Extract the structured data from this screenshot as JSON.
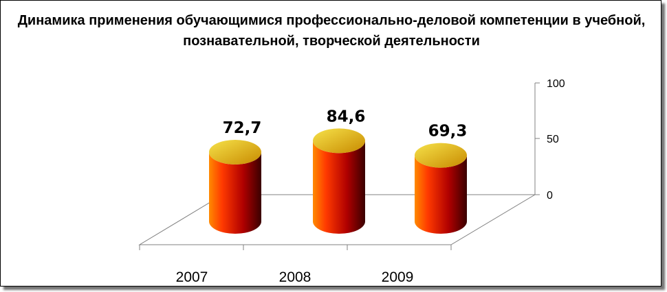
{
  "chart_data": {
    "type": "bar",
    "title": "Динамика применения обучающимися профессионально-деловой компетенции в учебной, познавательной, творческой деятельности",
    "categories": [
      "2007",
      "2008",
      "2009"
    ],
    "values": [
      72.7,
      84.6,
      69.3
    ],
    "data_labels": [
      "72,7",
      "84,6",
      "69,3"
    ],
    "y_ticks": [
      "0",
      "50",
      "100"
    ],
    "ylim": [
      0,
      100
    ],
    "grid": false,
    "legend": "none",
    "colors": {
      "bar_top": "#e6b800",
      "bar_light": "#ff8a00",
      "bar_mid": "#ff3a00",
      "bar_dark": "#3a0000"
    }
  }
}
